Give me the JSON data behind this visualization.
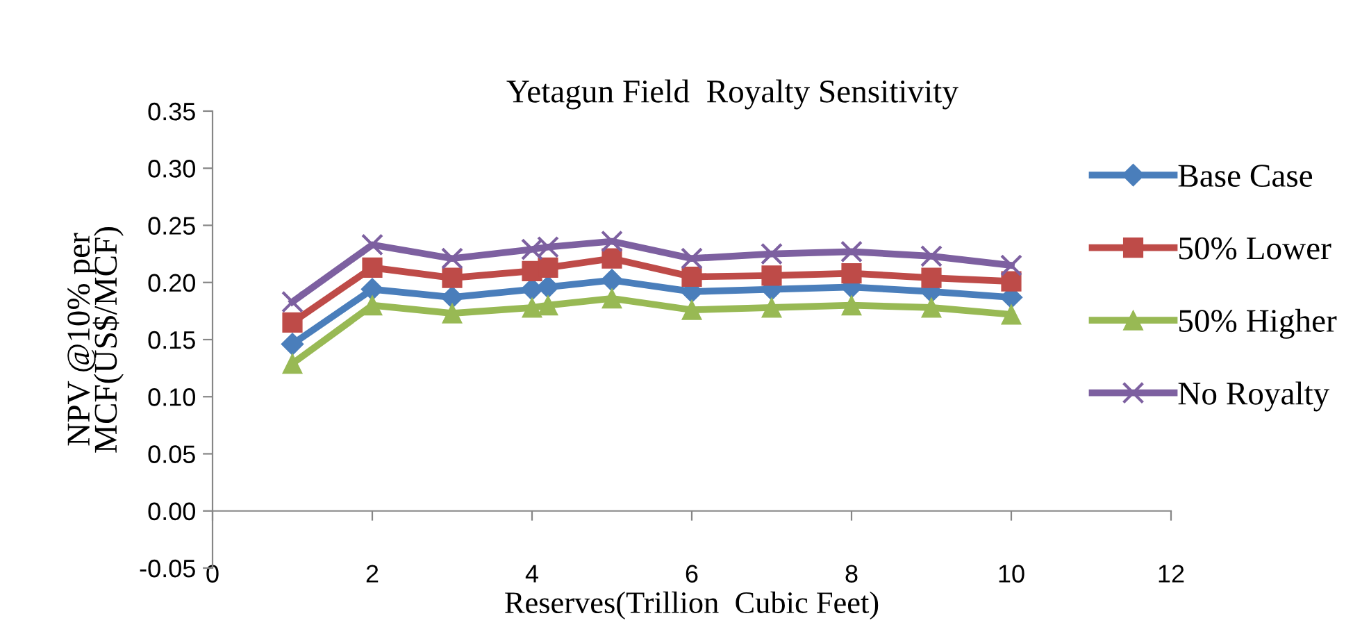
{
  "chart_data": {
    "type": "line",
    "title": "Yetagun Field  Royalty Sensitivity",
    "xlabel": "Reserves(Trillion  Cubic Feet)",
    "ylabel": "NPV @10% per\nMCF(US$/MCF)",
    "x": [
      1,
      2,
      3,
      4,
      4.2,
      5,
      6,
      7,
      8,
      9,
      10
    ],
    "series": [
      {
        "name": "Base Case",
        "color": "#4a7ebb",
        "marker": "diamond",
        "values": [
          0.146,
          0.194,
          0.187,
          0.194,
          0.196,
          0.202,
          0.192,
          0.194,
          0.196,
          0.192,
          0.187
        ]
      },
      {
        "name": "50% Lower",
        "color": "#be4b48",
        "marker": "square",
        "values": [
          0.165,
          0.213,
          0.204,
          0.21,
          0.213,
          0.221,
          0.205,
          0.206,
          0.208,
          0.204,
          0.201
        ]
      },
      {
        "name": "50% Higher",
        "color": "#98b954",
        "marker": "triangle",
        "values": [
          0.129,
          0.18,
          0.173,
          0.178,
          0.18,
          0.186,
          0.176,
          0.178,
          0.18,
          0.178,
          0.172
        ]
      },
      {
        "name": "No Royalty",
        "color": "#7d60a0",
        "marker": "cross",
        "values": [
          0.183,
          0.233,
          0.221,
          0.229,
          0.231,
          0.236,
          0.221,
          0.225,
          0.227,
          0.223,
          0.215
        ]
      }
    ],
    "xlim": [
      0,
      12
    ],
    "xticks": [
      0,
      2,
      4,
      6,
      8,
      10,
      12
    ],
    "ylim": [
      -0.05,
      0.35
    ],
    "yticks": [
      {
        "value": -0.05,
        "label": "-0.05"
      },
      {
        "value": 0,
        "label": "0.00"
      },
      {
        "value": 0.05,
        "label": "0.05"
      },
      {
        "value": 0.1,
        "label": "0.10"
      },
      {
        "value": 0.15,
        "label": "0.15"
      },
      {
        "value": 0.2,
        "label": "0.20"
      },
      {
        "value": 0.25,
        "label": "0.25"
      },
      {
        "value": 0.3,
        "label": "0.30"
      },
      {
        "value": 0.35,
        "label": "0.35"
      }
    ],
    "grid": false,
    "legend": "right",
    "line_style": "solid"
  }
}
